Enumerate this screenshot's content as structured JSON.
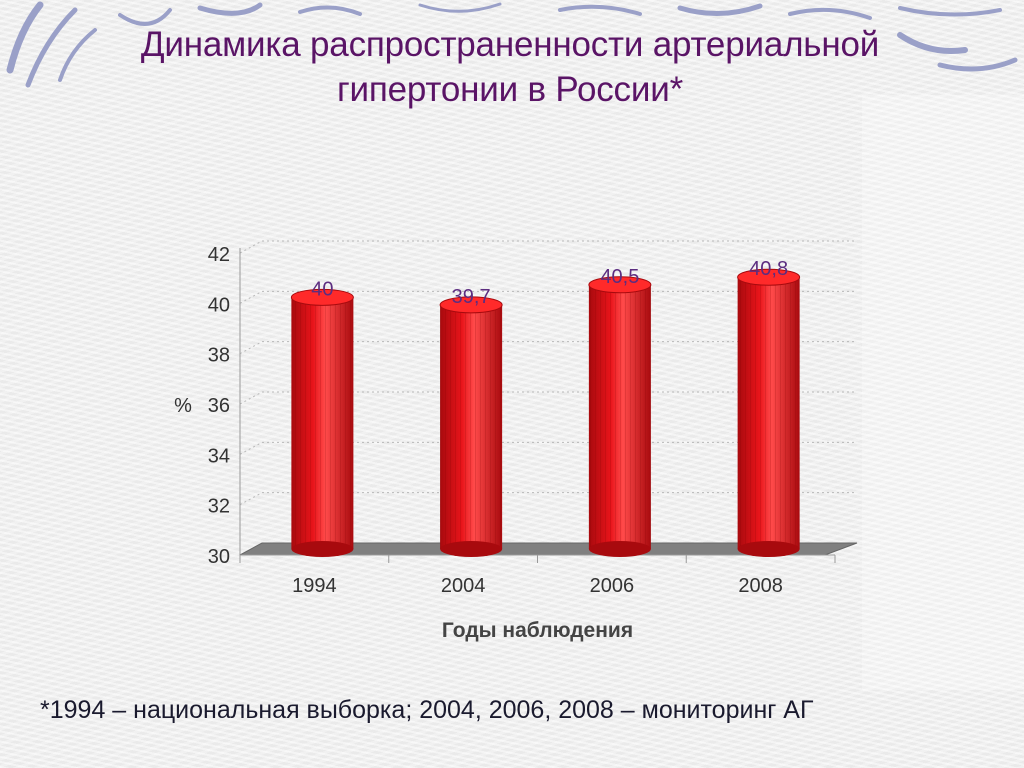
{
  "slide": {
    "title_line1": "Динамика распространенности артериальной",
    "title_line2": "гипертонии в России*",
    "footnote": "*1994 – национальная выборка; 2004, 2006, 2008 – мониторинг АГ"
  },
  "colors": {
    "title": "#5a1466",
    "bar": "#e8141a",
    "bar_dark": "#a80a0e",
    "floor": "#808080",
    "label": "#5c2d80",
    "axis_text": "#333333"
  },
  "chart_data": {
    "type": "bar",
    "style": "3d-cylinder",
    "categories": [
      "1994",
      "2004",
      "2006",
      "2008"
    ],
    "values": [
      40,
      39.7,
      40.5,
      40.8
    ],
    "value_labels": [
      "40",
      "39,7",
      "40,5",
      "40,8"
    ],
    "xlabel": "Годы наблюдения",
    "ylabel": "%",
    "ylim": [
      30,
      42
    ],
    "yticks": [
      "30",
      "32",
      "34",
      "36",
      "38",
      "40",
      "42"
    ],
    "grid": true,
    "legend": "none"
  }
}
